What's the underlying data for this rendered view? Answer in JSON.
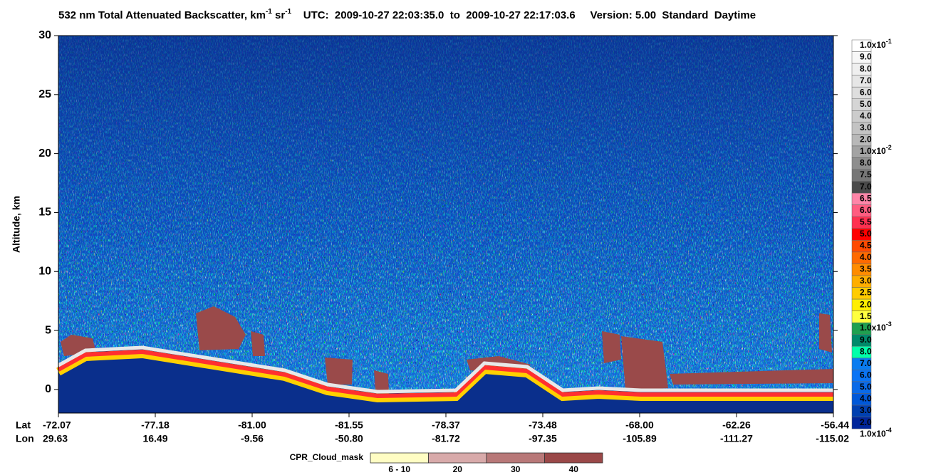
{
  "chart_data": {
    "type": "curtain",
    "title_parts": [
      {
        "text": "532 nm Total Attenuated Backscatter, km"
      },
      {
        "text": "-1",
        "sup": true
      },
      {
        "text": " sr"
      },
      {
        "text": "-1",
        "sup": true
      },
      {
        "text": "    UTC:  2009-10-27 22:03:35.0  to  2009-10-27 22:17:03.6     Version: 5.00  Standard  Daytime"
      }
    ],
    "y_label": "Altitude, km",
    "ylim": [
      -2,
      30
    ],
    "yticks": [
      0,
      5,
      10,
      15,
      20,
      25,
      30
    ],
    "lat_label": "Lat",
    "lon_label": "Lon",
    "lat": [
      "-72.07",
      "-77.18",
      "-81.00",
      "-81.55",
      "-78.37",
      "-73.48",
      "-68.00",
      "-62.26",
      "-56.44"
    ],
    "lon": [
      "29.63",
      "16.49",
      "-9.56",
      "-50.80",
      "-81.72",
      "-97.35",
      "-105.89",
      "-111.27",
      "-115.02"
    ],
    "colorbar": {
      "labels": [
        {
          "base": "1.0x10",
          "sup": "-1"
        },
        "9.0",
        "8.0",
        "7.0",
        "6.0",
        "5.0",
        "4.0",
        "3.0",
        "2.0",
        {
          "base": "1.0x10",
          "sup": "-2"
        },
        "8.0",
        "7.5",
        "7.0",
        "6.5",
        "6.0",
        "5.5",
        "5.0",
        "4.5",
        "4.0",
        "3.5",
        "3.0",
        "2.5",
        "2.0",
        "1.5",
        {
          "base": "1.0x10",
          "sup": "-3"
        },
        "9.0",
        "8.0",
        "7.0",
        "6.0",
        "5.0",
        "4.0",
        "3.0",
        "2.0",
        {
          "base": "1.0x10",
          "sup": "-4"
        }
      ],
      "colors": [
        "#ffffff",
        "#f7f7f7",
        "#efefef",
        "#e6e6e6",
        "#dedede",
        "#d5d5d5",
        "#cccccc",
        "#c3c3c3",
        "#b8b8b8",
        "#a3a3a3",
        "#8e8e8e",
        "#777777",
        "#4a4a4a",
        "#ff85a8",
        "#ff5c80",
        "#ff3050",
        "#ff0000",
        "#ff4a00",
        "#ff6a00",
        "#ff8c00",
        "#ffae00",
        "#ffcc00",
        "#ffee00",
        "#ffff40",
        "#20a050",
        "#008a6a",
        "#00ffaa",
        "#0a7cf0",
        "#0a74f5",
        "#0a6ae8",
        "#0058d8",
        "#0040b0",
        "#00259a"
      ]
    },
    "cpr": {
      "label": "CPR_Cloud_mask",
      "labels": [
        "6 - 10",
        "20",
        "30",
        "40"
      ],
      "colors": [
        "#fffdc3",
        "#d8aaaa",
        "#b87878",
        "#9a4848"
      ]
    }
  }
}
